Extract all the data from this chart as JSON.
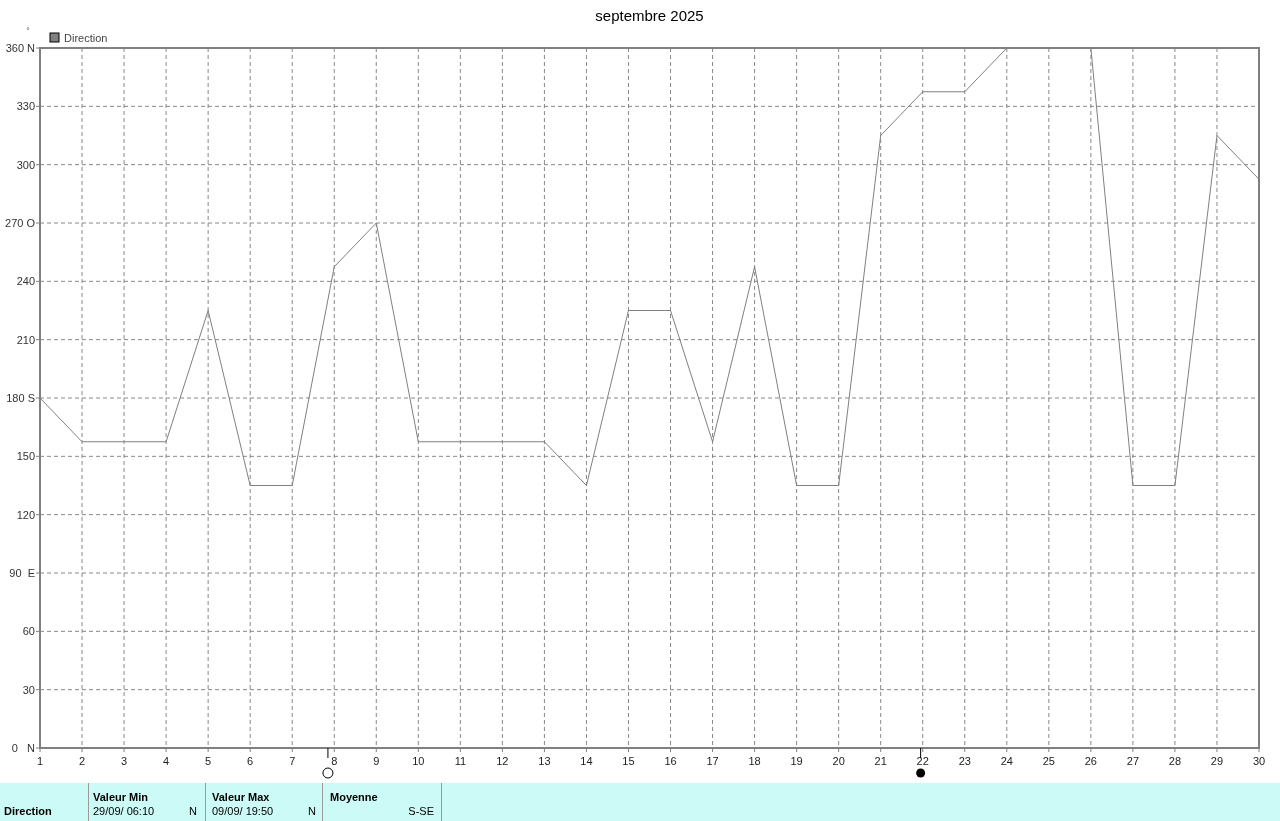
{
  "chart_data": {
    "type": "line",
    "title": "septembre 2025",
    "ylabel": "°",
    "x": [
      1,
      2,
      3,
      4,
      5,
      6,
      7,
      8,
      9,
      10,
      11,
      12,
      13,
      14,
      15,
      16,
      17,
      18,
      19,
      20,
      21,
      22,
      23,
      24,
      25,
      26,
      27,
      28,
      29,
      30
    ],
    "series": [
      {
        "name": "Direction",
        "color": "#808080",
        "values": [
          180,
          157.5,
          157.5,
          157.5,
          225,
          135,
          135,
          247.5,
          270,
          157.5,
          157.5,
          157.5,
          157.5,
          135,
          225,
          225,
          157.5,
          247.5,
          135,
          135,
          315,
          337.5,
          337.5,
          360,
          360,
          360,
          135,
          135,
          315,
          292.5
        ]
      }
    ],
    "xlim": [
      1,
      30
    ],
    "xticks": [
      1,
      2,
      3,
      4,
      5,
      6,
      7,
      8,
      9,
      10,
      11,
      12,
      13,
      14,
      15,
      16,
      17,
      18,
      19,
      20,
      21,
      22,
      23,
      24,
      25,
      26,
      27,
      28,
      29,
      30
    ],
    "ylim": [
      0,
      360
    ],
    "yticks": [
      {
        "value": 0,
        "label": "0   N"
      },
      30,
      60,
      {
        "value": 90,
        "label": "90  E"
      },
      120,
      150,
      {
        "value": 180,
        "label": "180 S"
      },
      210,
      240,
      {
        "value": 270,
        "label": "270 O"
      },
      300,
      330,
      {
        "value": 360,
        "label": "360 N"
      }
    ],
    "grid": true,
    "legend": "top left",
    "marker": "none",
    "line_style": "solid",
    "annotations": [
      "Direction",
      "Valeur Min",
      "29/09/  06:10",
      "N",
      "Valeur Max",
      "09/09/  19:50",
      "N",
      "Moyenne",
      "S-SE"
    ]
  }
}
